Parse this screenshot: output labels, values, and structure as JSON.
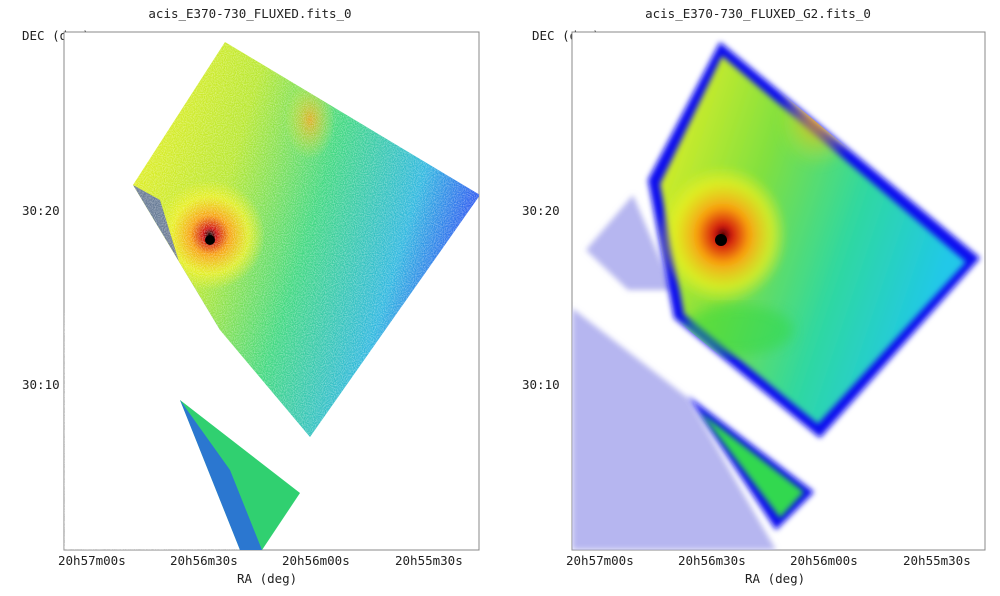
{
  "panels": [
    {
      "title": "acis_E370-730_FLUXED.fits_0",
      "ylabel": "DEC (deg)",
      "xlabel": "RA (deg)",
      "yticks": [
        "30:20",
        "30:10"
      ],
      "xticks": [
        "20h57m00s",
        "20h56m30s",
        "20h56m00s",
        "20h55m30s"
      ],
      "style": "raw"
    },
    {
      "title": "acis_E370-730_FLUXED_G2.fits_0",
      "ylabel": "DEC (deg)",
      "xlabel": "RA (deg)",
      "yticks": [
        "30:20",
        "30:10"
      ],
      "xticks": [
        "20h57m00s",
        "20h56m30s",
        "20h56m00s",
        "20h55m30s"
      ],
      "style": "smoothed"
    }
  ],
  "colors": {
    "faint": "#b6b6f0",
    "blue": "#2020ff",
    "cyan": "#22d0e0",
    "green": "#30d840",
    "yellow": "#f0f020",
    "orange": "#f8a010",
    "red": "#d01010",
    "black": "#000000"
  }
}
